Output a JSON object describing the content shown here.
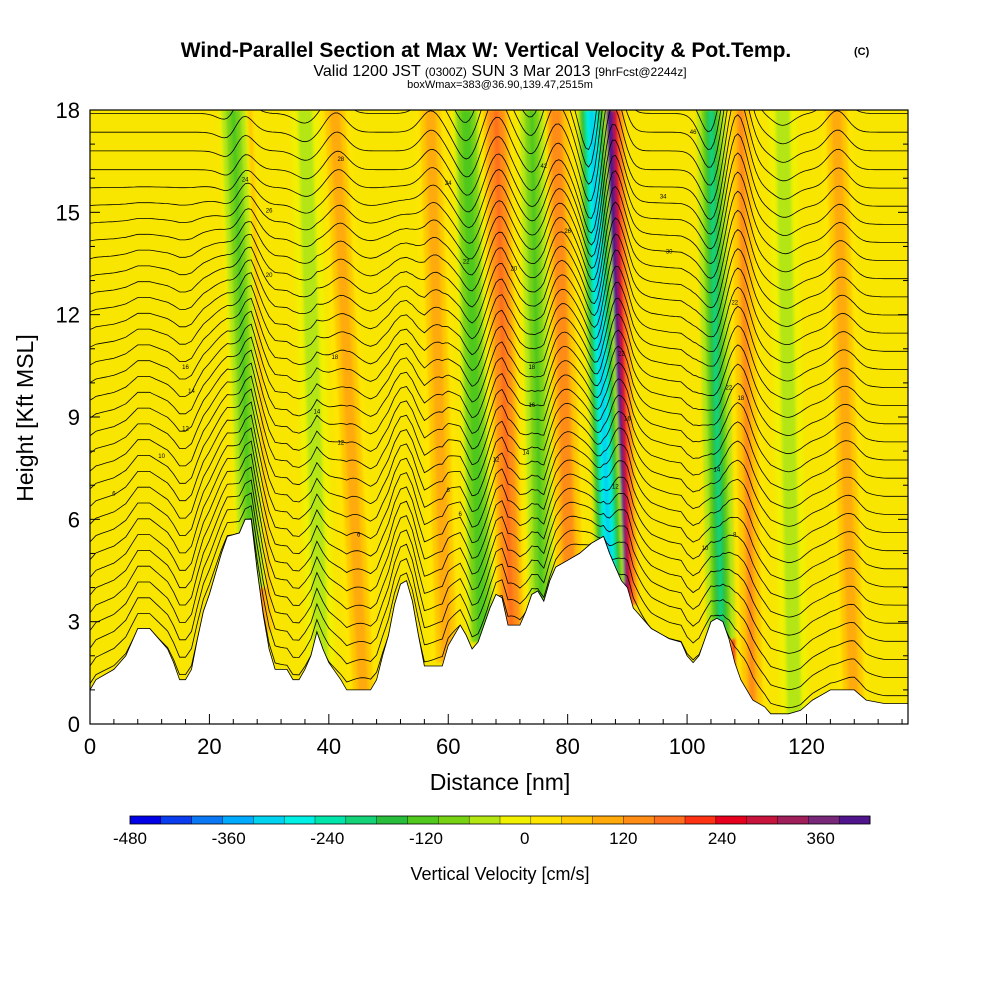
{
  "title": {
    "main": "Wind-Parallel Section at Max W: Vertical Velocity & Pot.Temp.",
    "copyright": "(C)",
    "valid_prefix": "Valid 1200 JST",
    "valid_utc": "(0300Z)",
    "valid_date": "SUN 3 Mar 2013",
    "forecast": "[9hrFcst@2244z]",
    "boxwmax": "boxWmax=383@36.90,139.47,2515m"
  },
  "chart_data": {
    "type": "heatmap",
    "xlabel": "Distance [nm]",
    "ylabel": "Height [Kft MSL]",
    "xlim": [
      0,
      137
    ],
    "ylim": [
      0,
      18
    ],
    "x_ticks": [
      0,
      20,
      40,
      60,
      80,
      100,
      120
    ],
    "y_ticks": [
      0,
      3,
      6,
      9,
      12,
      15,
      18
    ],
    "grid": false,
    "colorbar": {
      "title": "Vertical Velocity [cm/s]",
      "min": -480,
      "max": 420,
      "tick_values": [
        -480,
        -360,
        -240,
        -120,
        0,
        120,
        240,
        360
      ],
      "colors": [
        "#0000e6",
        "#0a3cf0",
        "#0a78f5",
        "#00aaff",
        "#00d2f0",
        "#00f0e6",
        "#00e6aa",
        "#14d278",
        "#28be3c",
        "#50c81e",
        "#78d214",
        "#b4e614",
        "#f0f000",
        "#ffe600",
        "#ffc800",
        "#ffaa0a",
        "#ff8c14",
        "#ff6e1e",
        "#ff3214",
        "#e6001e",
        "#c8143c",
        "#a01e5a",
        "#782878",
        "#50148c"
      ]
    },
    "terrain_profile": [
      [
        0,
        1
      ],
      [
        1,
        1.3
      ],
      [
        4,
        1.6
      ],
      [
        6,
        2
      ],
      [
        7,
        2.4
      ],
      [
        8,
        2.8
      ],
      [
        10,
        2.8
      ],
      [
        11,
        2.6
      ],
      [
        13,
        2.2
      ],
      [
        14,
        1.8
      ],
      [
        15,
        1.3
      ],
      [
        16,
        1.3
      ],
      [
        17,
        1.6
      ],
      [
        18,
        2.5
      ],
      [
        19,
        3.3
      ],
      [
        20,
        3.8
      ],
      [
        21,
        4.4
      ],
      [
        22,
        5
      ],
      [
        23,
        5.5
      ],
      [
        25,
        5.6
      ],
      [
        26,
        6
      ],
      [
        27,
        6
      ],
      [
        28,
        4.5
      ],
      [
        29,
        3.2
      ],
      [
        30,
        2.2
      ],
      [
        31,
        1.6
      ],
      [
        33,
        1.6
      ],
      [
        34,
        1.3
      ],
      [
        35,
        1.3
      ],
      [
        36,
        1.6
      ],
      [
        37,
        2
      ],
      [
        38,
        2.7
      ],
      [
        39,
        2.2
      ],
      [
        40,
        1.8
      ],
      [
        42,
        1.3
      ],
      [
        43,
        1
      ],
      [
        47,
        1
      ],
      [
        48,
        1.3
      ],
      [
        49,
        2
      ],
      [
        50,
        2.6
      ],
      [
        51,
        3.5
      ],
      [
        52,
        4.1
      ],
      [
        53,
        4.2
      ],
      [
        54,
        3.6
      ],
      [
        55,
        2.6
      ],
      [
        56,
        1.7
      ],
      [
        59,
        1.7
      ],
      [
        60,
        2.3
      ],
      [
        62,
        2.9
      ],
      [
        63,
        2.6
      ],
      [
        64,
        2.2
      ],
      [
        65,
        2.4
      ],
      [
        67,
        3.4
      ],
      [
        68,
        3.8
      ],
      [
        69,
        3.7
      ],
      [
        70,
        2.9
      ],
      [
        72,
        2.9
      ],
      [
        73,
        3.3
      ],
      [
        74,
        3.8
      ],
      [
        75,
        3.9
      ],
      [
        76,
        3.6
      ],
      [
        77,
        4.2
      ],
      [
        78,
        4.6
      ],
      [
        80,
        4.8
      ],
      [
        82,
        5
      ],
      [
        84,
        5.3
      ],
      [
        86,
        5.5
      ],
      [
        87,
        5
      ],
      [
        88,
        4.6
      ],
      [
        89,
        4.2
      ],
      [
        90,
        4
      ],
      [
        91,
        3.4
      ],
      [
        92,
        3.2
      ],
      [
        93,
        3
      ],
      [
        94,
        2.8
      ],
      [
        96,
        2.6
      ],
      [
        97,
        2.5
      ],
      [
        99,
        2.4
      ],
      [
        100,
        2
      ],
      [
        101,
        1.8
      ],
      [
        102,
        2
      ],
      [
        103,
        2.5
      ],
      [
        104,
        3
      ],
      [
        105,
        3.1
      ],
      [
        106,
        3
      ],
      [
        107,
        2.5
      ],
      [
        108,
        1.8
      ],
      [
        109,
        1.3
      ],
      [
        110,
        1
      ],
      [
        111,
        0.7
      ],
      [
        113,
        0.5
      ],
      [
        114,
        0.3
      ],
      [
        117,
        0.3
      ],
      [
        119,
        0.4
      ],
      [
        121,
        0.7
      ],
      [
        124,
        1
      ],
      [
        128,
        1
      ],
      [
        130,
        0.7
      ],
      [
        133,
        0.6
      ],
      [
        137,
        0.6
      ]
    ],
    "updraft_axes": [
      {
        "x0": 29,
        "x1": 25,
        "w_peak": 160
      },
      {
        "x0": 46,
        "x1": 41,
        "w_peak": 100
      },
      {
        "x0": 60,
        "x1": 57,
        "w_peak": 110
      },
      {
        "x0": 71,
        "x1": 68,
        "w_peak": 180
      },
      {
        "x0": 81,
        "x1": 78,
        "w_peak": 150
      },
      {
        "x0": 90,
        "x1": 87,
        "w_peak": 383
      },
      {
        "x0": 109,
        "x1": 108,
        "w_peak": 300
      },
      {
        "x0": 111,
        "x1": 109,
        "w_peak": 120
      },
      {
        "x0": 128,
        "x1": 125,
        "w_peak": 110
      }
    ],
    "downdraft_axes": [
      {
        "x0": 28,
        "x1": 24,
        "w_peak": -120
      },
      {
        "x0": 39,
        "x1": 36,
        "w_peak": -50
      },
      {
        "x0": 66,
        "x1": 63,
        "w_peak": -140
      },
      {
        "x0": 76,
        "x1": 74,
        "w_peak": -120
      },
      {
        "x0": 88,
        "x1": 84,
        "w_peak": -330
      },
      {
        "x0": 106,
        "x1": 104,
        "w_peak": -200
      },
      {
        "x0": 118,
        "x1": 116,
        "w_peak": -60
      }
    ],
    "contour_labels": [
      {
        "x": 4,
        "y": 6.7,
        "text": "6"
      },
      {
        "x": 12,
        "y": 7.8,
        "text": "10"
      },
      {
        "x": 16,
        "y": 8.6,
        "text": "12"
      },
      {
        "x": 17,
        "y": 9.7,
        "text": "14"
      },
      {
        "x": 16,
        "y": 10.4,
        "text": "16"
      },
      {
        "x": 41,
        "y": 10.7,
        "text": "18"
      },
      {
        "x": 38,
        "y": 9.1,
        "text": "14"
      },
      {
        "x": 42,
        "y": 8.2,
        "text": "12"
      },
      {
        "x": 60,
        "y": 6.8,
        "text": "8"
      },
      {
        "x": 62,
        "y": 6.1,
        "text": "6"
      },
      {
        "x": 45,
        "y": 5.5,
        "text": "6"
      },
      {
        "x": 30,
        "y": 13.1,
        "text": "20"
      },
      {
        "x": 30,
        "y": 15,
        "text": "26"
      },
      {
        "x": 26,
        "y": 15.9,
        "text": "24"
      },
      {
        "x": 42,
        "y": 16.5,
        "text": "28"
      },
      {
        "x": 60,
        "y": 15.8,
        "text": "24"
      },
      {
        "x": 63,
        "y": 13.5,
        "text": "22"
      },
      {
        "x": 71,
        "y": 13.3,
        "text": "20"
      },
      {
        "x": 74,
        "y": 10.4,
        "text": "18"
      },
      {
        "x": 74,
        "y": 9.3,
        "text": "16"
      },
      {
        "x": 68,
        "y": 7.7,
        "text": "12"
      },
      {
        "x": 73,
        "y": 7.9,
        "text": "14"
      },
      {
        "x": 76,
        "y": 16.3,
        "text": "42"
      },
      {
        "x": 80,
        "y": 14.4,
        "text": "26"
      },
      {
        "x": 89,
        "y": 10.8,
        "text": "22"
      },
      {
        "x": 90,
        "y": 8.9,
        "text": "16"
      },
      {
        "x": 88,
        "y": 6.9,
        "text": "12"
      },
      {
        "x": 101,
        "y": 17.3,
        "text": "46"
      },
      {
        "x": 96,
        "y": 15.4,
        "text": "34"
      },
      {
        "x": 97,
        "y": 13.8,
        "text": "30"
      },
      {
        "x": 108,
        "y": 12.3,
        "text": "22"
      },
      {
        "x": 107,
        "y": 9.8,
        "text": "22"
      },
      {
        "x": 109,
        "y": 9.5,
        "text": "18"
      },
      {
        "x": 105,
        "y": 7.4,
        "text": "14"
      },
      {
        "x": 103,
        "y": 5.1,
        "text": "10"
      },
      {
        "x": 108,
        "y": 5.5,
        "text": "8"
      }
    ]
  }
}
